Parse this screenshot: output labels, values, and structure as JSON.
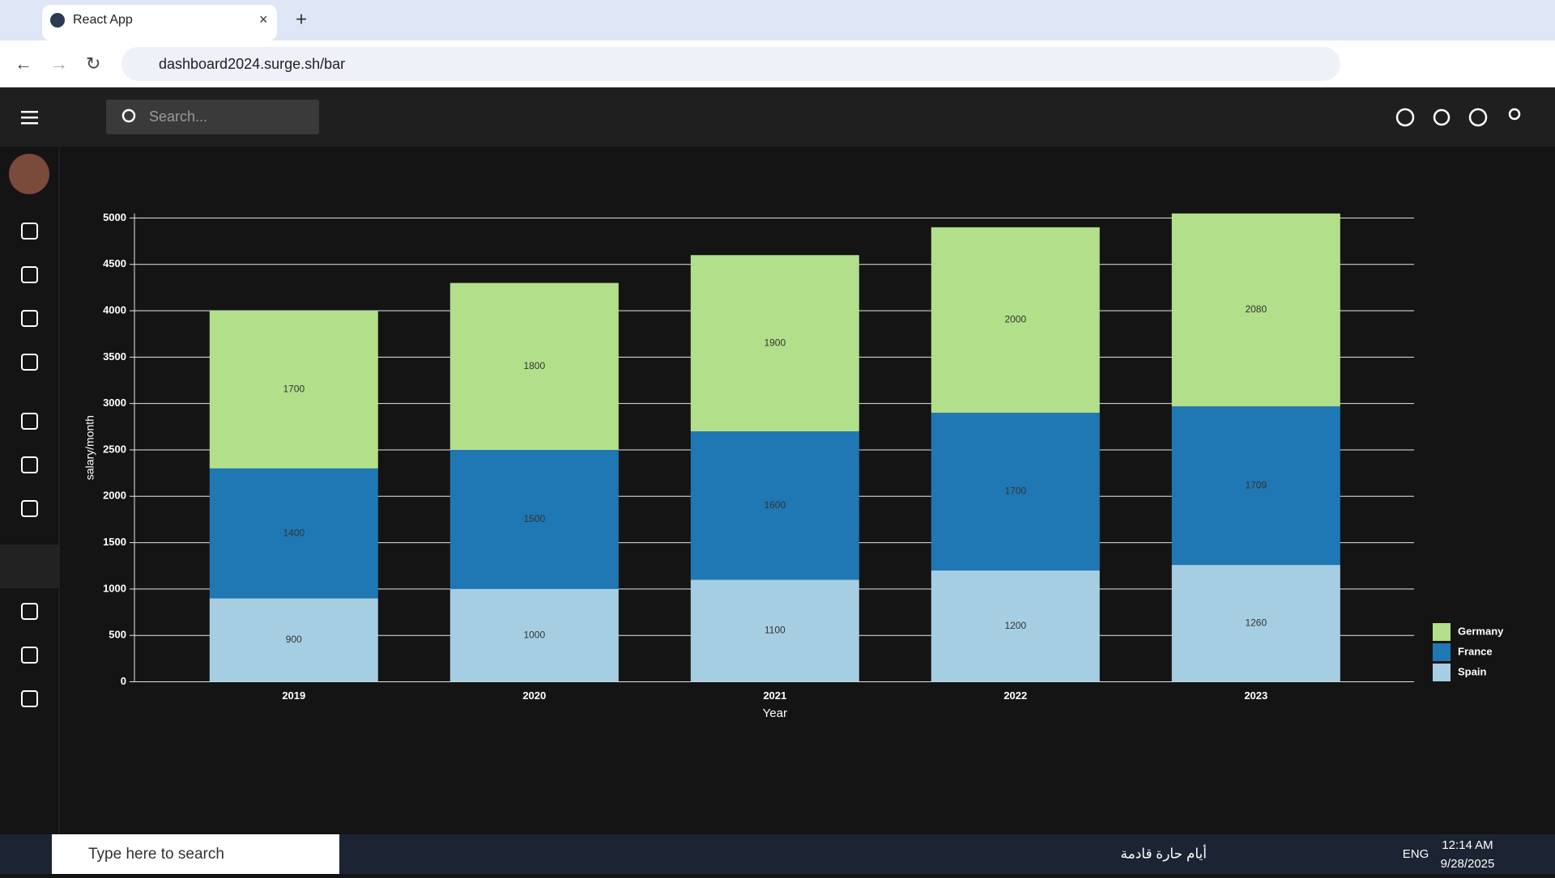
{
  "browser": {
    "tab_title": "React App",
    "url": "dashboard2024.surge.sh/bar"
  },
  "app": {
    "search_placeholder": "Search..."
  },
  "taskbar": {
    "search": "Type here to search",
    "weather": "أيام حارة قادمة",
    "language": "ENG",
    "time": "12:14 AM",
    "date": "9/28/2025"
  },
  "chart_data": {
    "type": "bar",
    "stacked": true,
    "x_label": "Year",
    "y_label": "salary/month",
    "categories": [
      "2019",
      "2020",
      "2021",
      "2022",
      "2023"
    ],
    "series": [
      {
        "name": "Spain",
        "color": "#a6cee3",
        "values": [
          900,
          1000,
          1100,
          1200,
          1260
        ]
      },
      {
        "name": "France",
        "color": "#1f78b4",
        "values": [
          1400,
          1500,
          1600,
          1700,
          1709
        ]
      },
      {
        "name": "Germany",
        "color": "#b2df8a",
        "values": [
          1700,
          1800,
          1900,
          2000,
          2080
        ]
      }
    ],
    "ylim": [
      0,
      5049
    ],
    "yticks": [
      0,
      500,
      1000,
      1500,
      2000,
      2500,
      3000,
      3500,
      4000,
      4500,
      5000
    ],
    "grid": true
  }
}
